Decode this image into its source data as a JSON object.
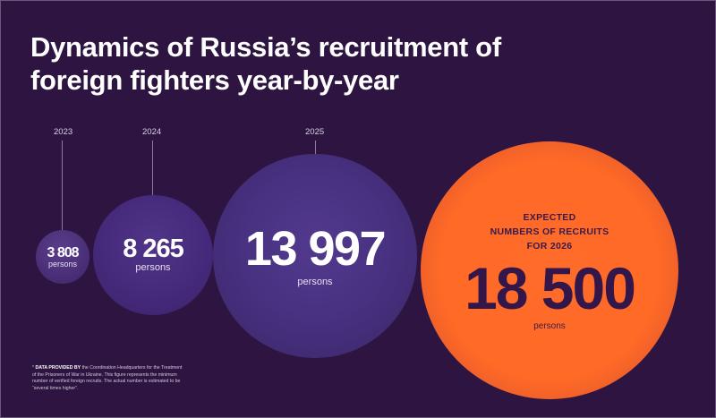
{
  "title": "Dynamics of Russia’s recruitment of foreign fighters year-by-year",
  "chart_data": {
    "type": "bubble",
    "title": "Dynamics of Russia’s recruitment of foreign fighters year-by-year",
    "categories": [
      "2023",
      "2024",
      "2025"
    ],
    "values": [
      3808,
      8265,
      13997
    ],
    "value_labels": [
      "3 808",
      "8 265",
      "13 997"
    ],
    "unit": "persons",
    "projection": {
      "label": "EXPECTED NUMBERS OF RECRUITS FOR 2026",
      "label_lines": [
        "EXPECTED",
        "NUMBERS OF RECRUITS",
        "FOR 2026"
      ],
      "value": 18500,
      "value_label": "18 500",
      "unit": "persons"
    },
    "colors": {
      "background": "#2e1541",
      "actual": "#4a2f7c",
      "projection": "#ff6a26"
    }
  },
  "footnote": {
    "lead": "DATA PROVIDED BY",
    "text": "the Coordination Headquarters for the Treatment of the Prisoners of War in Ukraine. This figure represents the minimum number of verified foreign recruits. The actual number is estimated to be “several times higher”."
  }
}
